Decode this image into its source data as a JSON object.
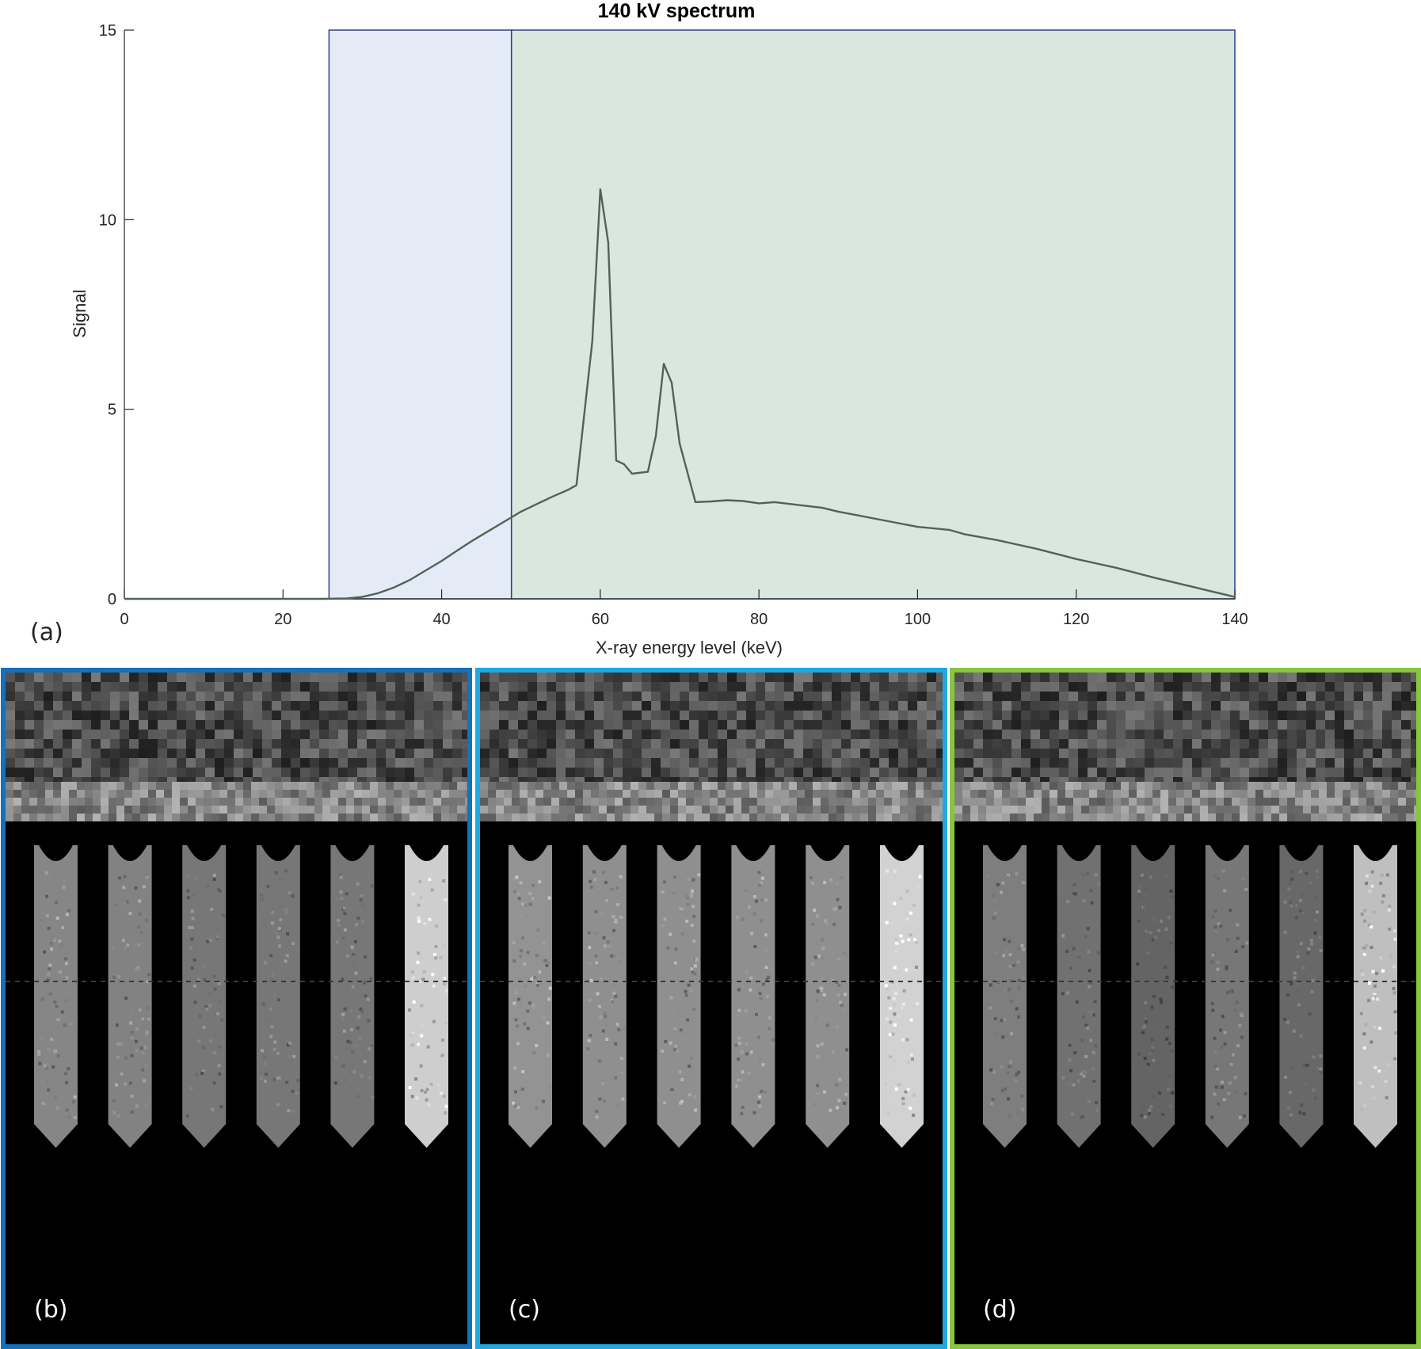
{
  "chart_data": {
    "type": "line",
    "title": "140 kV spectrum",
    "xlabel": "X-ray energy level (keV)",
    "ylabel": "Signal",
    "xlim": [
      0,
      140
    ],
    "ylim": [
      0,
      15
    ],
    "xticks": [
      0,
      20,
      40,
      60,
      80,
      100,
      120,
      140
    ],
    "yticks": [
      0,
      5,
      10,
      15
    ],
    "grid": false,
    "legend": "none",
    "energy_bins": [
      {
        "from": 25.8,
        "to": 48.8,
        "color": "#e5ebf6"
      },
      {
        "from": 48.8,
        "to": 140,
        "color": "#d9e7df"
      }
    ],
    "series": [
      {
        "color": "#4f6458",
        "x": [
          0,
          10,
          20,
          25,
          28,
          30,
          32,
          34,
          36,
          38,
          40,
          42,
          44,
          46,
          48,
          50,
          52,
          54,
          56,
          57,
          59,
          60,
          61,
          62,
          63,
          64,
          66,
          67,
          68,
          69,
          70,
          72,
          74,
          76,
          78,
          80,
          82,
          84,
          86,
          88,
          90,
          92,
          95,
          100,
          104,
          106,
          110,
          115,
          120,
          125,
          130,
          135,
          140
        ],
        "y": [
          0,
          0,
          0,
          0,
          0.01,
          0.05,
          0.15,
          0.3,
          0.5,
          0.75,
          1.0,
          1.28,
          1.55,
          1.8,
          2.05,
          2.3,
          2.5,
          2.7,
          2.88,
          3.0,
          6.8,
          10.8,
          9.4,
          3.65,
          3.55,
          3.3,
          3.35,
          4.3,
          6.2,
          5.7,
          4.1,
          2.55,
          2.57,
          2.6,
          2.58,
          2.52,
          2.55,
          2.5,
          2.45,
          2.4,
          2.3,
          2.22,
          2.1,
          1.9,
          1.82,
          1.7,
          1.55,
          1.32,
          1.05,
          0.82,
          0.55,
          0.3,
          0.05
        ]
      }
    ]
  },
  "labels": {
    "panel_a": "(a)",
    "panel_b": "(b)",
    "panel_c": "(c)",
    "panel_d": "(d)"
  },
  "colors": {
    "panel_b_border": "#1770ba",
    "panel_c_border": "#20a8e0",
    "panel_d_border": "#88c540"
  },
  "reconstructions": [
    {
      "key": "b",
      "border": "#1770ba",
      "vial_levels": [
        0.62,
        0.6,
        0.55,
        0.55,
        0.55,
        0.95
      ]
    },
    {
      "key": "c",
      "border": "#20a8e0",
      "vial_levels": [
        0.68,
        0.66,
        0.66,
        0.66,
        0.66,
        0.97
      ]
    },
    {
      "key": "d",
      "border": "#88c540",
      "vial_levels": [
        0.58,
        0.52,
        0.46,
        0.55,
        0.48,
        0.88
      ]
    }
  ]
}
